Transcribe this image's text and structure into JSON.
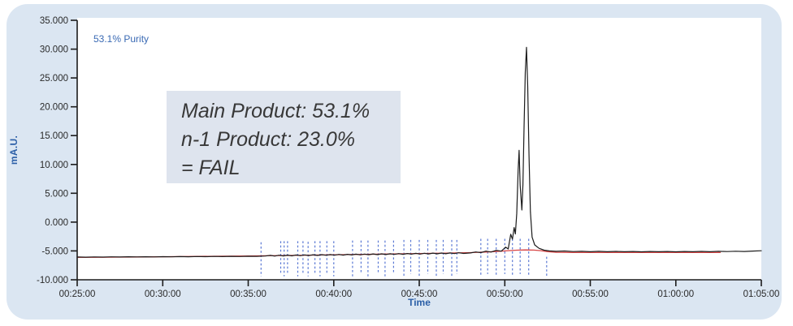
{
  "purity_label": "53.1% Purity",
  "annotation": {
    "line1": "Main Product: 53.1%",
    "line2": "n-1 Product: 23.0%",
    "line3": "= FAIL"
  },
  "colors": {
    "frame_bg": "#dbe6f2",
    "plot_bg": "#ffffff",
    "axis": "#1c1c1c",
    "tick_label": "#2a2a2a",
    "blue_axis_title": "#2b5fa7",
    "purity_text": "#3a6ab4",
    "annotation_bg": "#dee4ee",
    "annotation_text": "#383838",
    "signal": "#1c1c1c",
    "baseline": "#d84545",
    "integration_mark": "#5b79d4"
  },
  "chart_data": {
    "type": "line",
    "title": "",
    "xlabel": "Time",
    "ylabel": "mA.U.",
    "xlim_minutes": [
      25,
      65
    ],
    "ylim": [
      -10000,
      35000
    ],
    "grid": false,
    "x_tick_minutes": [
      25,
      30,
      35,
      40,
      45,
      50,
      55,
      60,
      65
    ],
    "x_tick_labels": [
      "00:25:00",
      "00:30:00",
      "00:35:00",
      "00:40:00",
      "00:45:00",
      "00:50:00",
      "00:55:00",
      "01:00:00",
      "01:05:00"
    ],
    "y_tick_values": [
      35000,
      30000,
      25000,
      20000,
      15000,
      10000,
      5000,
      0,
      -5000,
      -10000
    ],
    "y_tick_labels": [
      "35.000",
      "30.000",
      "25.000",
      "20.000",
      "15.000",
      "10.000",
      "5.000",
      "0.000",
      "-5.000",
      "-10.000"
    ],
    "series": [
      {
        "name": "signal",
        "color": "#1c1c1c",
        "points": [
          [
            25,
            -6050
          ],
          [
            25.5,
            -6080
          ],
          [
            26,
            -6030
          ],
          [
            26.5,
            -6060
          ],
          [
            27,
            -6020
          ],
          [
            27.5,
            -6050
          ],
          [
            28,
            -6010
          ],
          [
            28.5,
            -6040
          ],
          [
            29,
            -6000
          ],
          [
            29.5,
            -6030
          ],
          [
            30,
            -5990
          ],
          [
            30.5,
            -6020
          ],
          [
            31,
            -5980
          ],
          [
            31.5,
            -6010
          ],
          [
            32,
            -5970
          ],
          [
            32.5,
            -5995
          ],
          [
            33,
            -5955
          ],
          [
            33.5,
            -5985
          ],
          [
            34,
            -5940
          ],
          [
            34.5,
            -5960
          ],
          [
            35,
            -5915
          ],
          [
            35.5,
            -5935
          ],
          [
            36,
            -5880
          ],
          [
            36.3,
            -5770
          ],
          [
            36.55,
            -5890
          ],
          [
            36.8,
            -5745
          ],
          [
            37.05,
            -5865
          ],
          [
            37.3,
            -5720
          ],
          [
            37.55,
            -5845
          ],
          [
            37.8,
            -5700
          ],
          [
            38.05,
            -5820
          ],
          [
            38.3,
            -5680
          ],
          [
            38.55,
            -5800
          ],
          [
            38.8,
            -5660
          ],
          [
            39.05,
            -5780
          ],
          [
            39.3,
            -5640
          ],
          [
            39.55,
            -5760
          ],
          [
            39.8,
            -5620
          ],
          [
            40.05,
            -5740
          ],
          [
            40.3,
            -5600
          ],
          [
            40.55,
            -5720
          ],
          [
            40.8,
            -5580
          ],
          [
            41.05,
            -5700
          ],
          [
            41.3,
            -5560
          ],
          [
            41.55,
            -5680
          ],
          [
            41.8,
            -5540
          ],
          [
            42.05,
            -5660
          ],
          [
            42.3,
            -5520
          ],
          [
            42.55,
            -5640
          ],
          [
            42.8,
            -5500
          ],
          [
            43.05,
            -5620
          ],
          [
            43.3,
            -5480
          ],
          [
            43.55,
            -5600
          ],
          [
            43.8,
            -5460
          ],
          [
            44.05,
            -5580
          ],
          [
            44.3,
            -5440
          ],
          [
            44.55,
            -5560
          ],
          [
            44.8,
            -5420
          ],
          [
            45.05,
            -5540
          ],
          [
            45.3,
            -5400
          ],
          [
            45.55,
            -5520
          ],
          [
            45.8,
            -5380
          ],
          [
            46.05,
            -5500
          ],
          [
            46.3,
            -5360
          ],
          [
            46.55,
            -5480
          ],
          [
            46.8,
            -5340
          ],
          [
            47.05,
            -5460
          ],
          [
            47.3,
            -5320
          ],
          [
            47.6,
            -5430
          ],
          [
            48,
            -5340
          ],
          [
            48.3,
            -5180
          ],
          [
            48.6,
            -5290
          ],
          [
            48.9,
            -5040
          ],
          [
            49.2,
            -5190
          ],
          [
            49.5,
            -4890
          ],
          [
            49.8,
            -5040
          ],
          [
            50.05,
            -4350
          ],
          [
            50.2,
            -4650
          ],
          [
            50.35,
            -2100
          ],
          [
            50.45,
            -2950
          ],
          [
            50.55,
            -950
          ],
          [
            50.62,
            -2050
          ],
          [
            50.7,
            1500
          ],
          [
            50.78,
            9000
          ],
          [
            50.84,
            12450
          ],
          [
            50.9,
            6400
          ],
          [
            51,
            2100
          ],
          [
            51.06,
            6500
          ],
          [
            51.13,
            16500
          ],
          [
            51.2,
            26000
          ],
          [
            51.27,
            30300
          ],
          [
            51.34,
            23500
          ],
          [
            51.42,
            11500
          ],
          [
            51.5,
            1800
          ],
          [
            51.6,
            -2600
          ],
          [
            51.75,
            -3950
          ],
          [
            52,
            -4550
          ],
          [
            52.3,
            -4870
          ],
          [
            52.6,
            -5000
          ],
          [
            53,
            -5060
          ],
          [
            53.5,
            -5010
          ],
          [
            54,
            -5110
          ],
          [
            54.5,
            -5060
          ],
          [
            55,
            -5130
          ],
          [
            55.5,
            -5070
          ],
          [
            56,
            -5140
          ],
          [
            56.5,
            -5080
          ],
          [
            57,
            -5140
          ],
          [
            57.5,
            -5090
          ],
          [
            58,
            -5150
          ],
          [
            58.5,
            -5090
          ],
          [
            59,
            -5140
          ],
          [
            59.5,
            -5090
          ],
          [
            60,
            -5150
          ],
          [
            60.5,
            -5090
          ],
          [
            61,
            -5140
          ],
          [
            61.5,
            -5080
          ],
          [
            62,
            -5130
          ],
          [
            62.5,
            -5070
          ],
          [
            63,
            -5110
          ],
          [
            63.5,
            -5050
          ],
          [
            64,
            -5090
          ],
          [
            64.5,
            -5020
          ],
          [
            65,
            -4960
          ]
        ]
      },
      {
        "name": "baseline",
        "color": "#d84545",
        "points": [
          [
            25,
            -6120
          ],
          [
            27,
            -6080
          ],
          [
            29,
            -6030
          ],
          [
            31,
            -5980
          ],
          [
            33,
            -5920
          ],
          [
            35,
            -5860
          ],
          [
            37,
            -5790
          ],
          [
            39,
            -5710
          ],
          [
            41,
            -5630
          ],
          [
            43,
            -5540
          ],
          [
            45,
            -5450
          ],
          [
            46.5,
            -5380
          ],
          [
            48,
            -5290
          ],
          [
            49,
            -5180
          ],
          [
            49.7,
            -5060
          ],
          [
            50.2,
            -4950
          ],
          [
            50.7,
            -4870
          ],
          [
            51.2,
            -4830
          ],
          [
            51.7,
            -4850
          ],
          [
            52.1,
            -4950
          ],
          [
            52.5,
            -5120
          ],
          [
            53,
            -5230
          ],
          [
            54,
            -5270
          ],
          [
            56,
            -5280
          ],
          [
            58,
            -5280
          ],
          [
            60,
            -5280
          ],
          [
            61.5,
            -5280
          ],
          [
            62.6,
            -5270
          ]
        ]
      }
    ],
    "integration_marks": {
      "color": "#5b79d4",
      "style": "dashed",
      "marks": [
        [
          35.75,
          -3500,
          -9400
        ],
        [
          36.9,
          -3300,
          -9000
        ],
        [
          37.1,
          -3300,
          -9400
        ],
        [
          37.3,
          -3300,
          -9000
        ],
        [
          37.9,
          -3300,
          -9400
        ],
        [
          38.2,
          -3300,
          -9000
        ],
        [
          38.5,
          -3400,
          -9400
        ],
        [
          38.9,
          -3300,
          -9000
        ],
        [
          39.2,
          -3300,
          -9400
        ],
        [
          39.6,
          -3300,
          -9000
        ],
        [
          40.0,
          -3300,
          -9400
        ],
        [
          41.1,
          -3200,
          -9400
        ],
        [
          41.6,
          -3200,
          -9000
        ],
        [
          42.0,
          -3200,
          -9400
        ],
        [
          42.6,
          -3200,
          -9000
        ],
        [
          43.0,
          -3200,
          -9400
        ],
        [
          43.5,
          -3200,
          -9000
        ],
        [
          44.1,
          -3100,
          -9400
        ],
        [
          44.5,
          -3100,
          -9000
        ],
        [
          45.0,
          -3100,
          -9400
        ],
        [
          45.5,
          -3100,
          -9000
        ],
        [
          46.0,
          -3100,
          -9400
        ],
        [
          46.4,
          -3100,
          -9000
        ],
        [
          46.9,
          -3100,
          -9400
        ],
        [
          47.2,
          -3100,
          -9000
        ],
        [
          48.6,
          -2900,
          -9400
        ],
        [
          49.0,
          -2900,
          -9000
        ],
        [
          49.5,
          -2900,
          -9400
        ],
        [
          50.0,
          -2900,
          -9000
        ],
        [
          50.45,
          -2900,
          -9400
        ],
        [
          50.9,
          -2900,
          -9000
        ],
        [
          51.4,
          -2900,
          -9400
        ],
        [
          52.45,
          -6000,
          -9400
        ]
      ]
    }
  }
}
